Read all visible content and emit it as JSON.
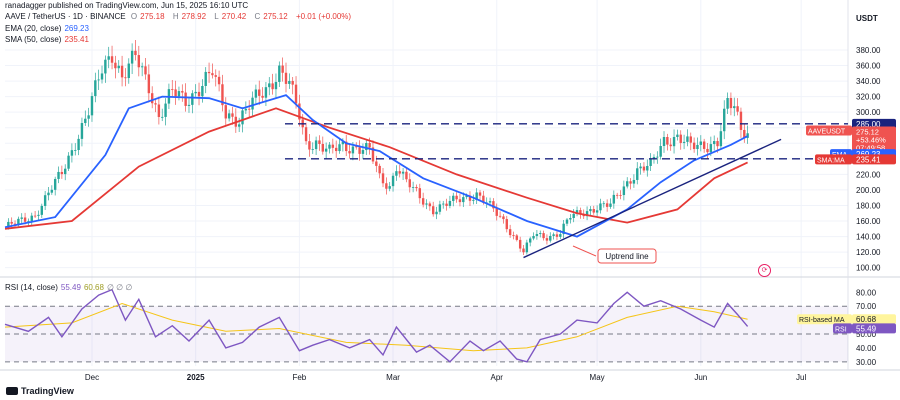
{
  "header": {
    "publisher": "ranadagger published on TradingView.com, Jun 15, 2025 16:10 UTC",
    "symbol": "AAVE / TetherUS · 1D · BINANCE",
    "ohlc": {
      "o_label": "O",
      "o": "275.18",
      "h_label": "H",
      "h": "278.92",
      "l_label": "L",
      "l": "270.42",
      "c_label": "C",
      "c": "275.12",
      "change": "+0.01 (+0.00%)"
    },
    "ema_legend": {
      "label": "EMA (20, close)",
      "value": "269.23"
    },
    "sma_legend": {
      "label": "SMA (50, close)",
      "value": "235.41"
    },
    "rsi_legend": {
      "label": "RSI (14, close)",
      "value": "55.49",
      "value2": "60.68",
      "extras": "∅ ∅ ∅"
    },
    "currency": "USDT",
    "brand": "TradingView"
  },
  "chart_data": {
    "type": "candlestick",
    "price_axis": {
      "ticks": [
        100,
        120,
        140,
        160,
        180,
        200,
        220,
        240,
        260,
        280,
        300,
        320,
        340,
        360,
        380
      ],
      "tick_labels": [
        "100.00",
        "120.00",
        "140.00",
        "160.00",
        "180.00",
        "200.00",
        "220.00",
        "240.00",
        "260.00",
        "280.00",
        "300.00",
        "320.00",
        "340.00",
        "360.00",
        "380.00"
      ],
      "range": [
        97,
        398
      ],
      "scale": "linear"
    },
    "time_axis": {
      "labels": [
        "Dec",
        "2025",
        "Feb",
        "Mar",
        "Apr",
        "May",
        "Jun",
        "Jul"
      ],
      "label_dates": [
        "2024-12-01",
        "2025-01-01",
        "2025-02-01",
        "2025-03-01",
        "2025-04-01",
        "2025-05-01",
        "2025-06-01",
        "2025-07-01"
      ],
      "range": [
        "2024-11-05",
        "2025-07-15"
      ]
    },
    "anchors": [
      [
        "2024-11-05",
        152
      ],
      [
        "2024-11-10",
        160
      ],
      [
        "2024-11-14",
        168
      ],
      [
        "2024-11-18",
        195
      ],
      [
        "2024-11-22",
        222
      ],
      [
        "2024-11-26",
        262
      ],
      [
        "2024-11-30",
        300
      ],
      [
        "2024-12-04",
        355
      ],
      [
        "2024-12-07",
        378
      ],
      [
        "2024-12-10",
        345
      ],
      [
        "2024-12-14",
        370
      ],
      [
        "2024-12-18",
        335
      ],
      [
        "2024-12-21",
        295
      ],
      [
        "2024-12-25",
        325
      ],
      [
        "2024-12-29",
        315
      ],
      [
        "2025-01-02",
        332
      ],
      [
        "2025-01-06",
        350
      ],
      [
        "2025-01-10",
        300
      ],
      [
        "2025-01-14",
        290
      ],
      [
        "2025-01-18",
        312
      ],
      [
        "2025-01-22",
        330
      ],
      [
        "2025-01-26",
        355
      ],
      [
        "2025-01-29",
        335
      ],
      [
        "2025-02-01",
        295
      ],
      [
        "2025-02-03",
        260
      ],
      [
        "2025-02-06",
        262
      ],
      [
        "2025-02-10",
        248
      ],
      [
        "2025-02-14",
        257
      ],
      [
        "2025-02-18",
        255
      ],
      [
        "2025-02-22",
        250
      ],
      [
        "2025-02-25",
        215
      ],
      [
        "2025-02-28",
        205
      ],
      [
        "2025-03-02",
        232
      ],
      [
        "2025-03-05",
        210
      ],
      [
        "2025-03-09",
        190
      ],
      [
        "2025-03-13",
        175
      ],
      [
        "2025-03-18",
        183
      ],
      [
        "2025-03-22",
        190
      ],
      [
        "2025-03-26",
        195
      ],
      [
        "2025-03-30",
        178
      ],
      [
        "2025-04-03",
        160
      ],
      [
        "2025-04-07",
        135
      ],
      [
        "2025-04-09",
        120
      ],
      [
        "2025-04-12",
        142
      ],
      [
        "2025-04-16",
        140
      ],
      [
        "2025-04-20",
        145
      ],
      [
        "2025-04-23",
        165
      ],
      [
        "2025-04-27",
        172
      ],
      [
        "2025-05-01",
        178
      ],
      [
        "2025-05-05",
        180
      ],
      [
        "2025-05-09",
        205
      ],
      [
        "2025-05-13",
        225
      ],
      [
        "2025-05-17",
        230
      ],
      [
        "2025-05-21",
        265
      ],
      [
        "2025-05-25",
        268
      ],
      [
        "2025-05-29",
        255
      ],
      [
        "2025-06-02",
        258
      ],
      [
        "2025-06-06",
        262
      ],
      [
        "2025-06-09",
        310
      ],
      [
        "2025-06-11",
        305
      ],
      [
        "2025-06-13",
        280
      ],
      [
        "2025-06-15",
        275
      ]
    ],
    "ema": {
      "name": "EMA",
      "period": 20,
      "color": "#2962ff",
      "points": [
        [
          "2024-11-05",
          152
        ],
        [
          "2024-11-20",
          165
        ],
        [
          "2024-12-05",
          245
        ],
        [
          "2024-12-12",
          305
        ],
        [
          "2024-12-22",
          320
        ],
        [
          "2025-01-05",
          318
        ],
        [
          "2025-01-15",
          305
        ],
        [
          "2025-01-28",
          322
        ],
        [
          "2025-02-05",
          290
        ],
        [
          "2025-02-15",
          260
        ],
        [
          "2025-02-25",
          250
        ],
        [
          "2025-03-10",
          215
        ],
        [
          "2025-03-25",
          190
        ],
        [
          "2025-04-10",
          160
        ],
        [
          "2025-04-25",
          140
        ],
        [
          "2025-05-10",
          175
        ],
        [
          "2025-05-20",
          210
        ],
        [
          "2025-05-30",
          238
        ],
        [
          "2025-06-10",
          258
        ],
        [
          "2025-06-15",
          269.23
        ]
      ]
    },
    "sma": {
      "name": "SMA",
      "period": 50,
      "color": "#e53935",
      "points": [
        [
          "2024-11-05",
          150
        ],
        [
          "2024-11-25",
          160
        ],
        [
          "2024-12-15",
          230
        ],
        [
          "2025-01-05",
          275
        ],
        [
          "2025-01-25",
          305
        ],
        [
          "2025-02-10",
          280
        ],
        [
          "2025-02-28",
          255
        ],
        [
          "2025-03-20",
          220
        ],
        [
          "2025-04-10",
          190
        ],
        [
          "2025-04-25",
          170
        ],
        [
          "2025-05-10",
          158
        ],
        [
          "2025-05-25",
          175
        ],
        [
          "2025-06-05",
          215
        ],
        [
          "2025-06-15",
          235.41
        ]
      ]
    },
    "horizontal_lines": [
      {
        "value": 285,
        "label": "285.00",
        "style": "dashed",
        "color": "#1a237e"
      },
      {
        "value": 240,
        "label": "240.00",
        "style": "dashed",
        "color": "#1a237e"
      }
    ],
    "trendline": {
      "name": "Uptrend line",
      "from": [
        "2025-04-09",
        113
      ],
      "to": [
        "2025-06-25",
        265
      ],
      "color": "#1a237e"
    },
    "price_badges": [
      {
        "label": "AAVEUSDT",
        "value": "275.12",
        "extra": [
          "+53.46%",
          "07:49:58"
        ],
        "color": "#ef5350"
      },
      {
        "label": "EMA",
        "value": "269.23",
        "color": "#2962ff"
      },
      {
        "label": "SMA:MA",
        "value": "235.41",
        "color": "#e53935"
      }
    ],
    "rsi": {
      "name": "RSI",
      "period": 14,
      "color": "#7e57c2",
      "axis_ticks": [
        30,
        40,
        50,
        60,
        70,
        80
      ],
      "axis_tick_labels": [
        "30.00",
        "40.00",
        "50.00",
        "60.00",
        "70.00",
        "80.00"
      ],
      "range": [
        27,
        86
      ],
      "band": [
        30,
        70
      ],
      "current": 55.49,
      "current_label": "55.49",
      "ma_label": "RSI-based MA",
      "ma_value": 60.68,
      "ma_value_label": "60.68",
      "points": [
        [
          "2024-11-05",
          57
        ],
        [
          "2024-11-12",
          52
        ],
        [
          "2024-11-18",
          62
        ],
        [
          "2024-11-22",
          48
        ],
        [
          "2024-11-28",
          68
        ],
        [
          "2024-12-03",
          78
        ],
        [
          "2024-12-07",
          82
        ],
        [
          "2024-12-11",
          60
        ],
        [
          "2024-12-15",
          75
        ],
        [
          "2024-12-20",
          48
        ],
        [
          "2024-12-25",
          56
        ],
        [
          "2024-12-30",
          45
        ],
        [
          "2025-01-05",
          60
        ],
        [
          "2025-01-10",
          40
        ],
        [
          "2025-01-15",
          44
        ],
        [
          "2025-01-20",
          55
        ],
        [
          "2025-01-26",
          62
        ],
        [
          "2025-02-01",
          38
        ],
        [
          "2025-02-05",
          42
        ],
        [
          "2025-02-10",
          46
        ],
        [
          "2025-02-16",
          40
        ],
        [
          "2025-02-22",
          46
        ],
        [
          "2025-02-26",
          35
        ],
        [
          "2025-03-02",
          55
        ],
        [
          "2025-03-08",
          37
        ],
        [
          "2025-03-12",
          42
        ],
        [
          "2025-03-18",
          30
        ],
        [
          "2025-03-24",
          45
        ],
        [
          "2025-03-28",
          38
        ],
        [
          "2025-04-02",
          45
        ],
        [
          "2025-04-07",
          32
        ],
        [
          "2025-04-10",
          30
        ],
        [
          "2025-04-14",
          46
        ],
        [
          "2025-04-20",
          50
        ],
        [
          "2025-04-25",
          60
        ],
        [
          "2025-05-01",
          58
        ],
        [
          "2025-05-06",
          72
        ],
        [
          "2025-05-10",
          80
        ],
        [
          "2025-05-15",
          70
        ],
        [
          "2025-05-20",
          74
        ],
        [
          "2025-05-26",
          68
        ],
        [
          "2025-06-01",
          60
        ],
        [
          "2025-06-05",
          55
        ],
        [
          "2025-06-09",
          72
        ],
        [
          "2025-06-12",
          64
        ],
        [
          "2025-06-15",
          55.49
        ]
      ],
      "ma_points": [
        [
          "2024-11-05",
          55
        ],
        [
          "2024-11-25",
          58
        ],
        [
          "2024-12-10",
          72
        ],
        [
          "2024-12-25",
          60
        ],
        [
          "2025-01-10",
          52
        ],
        [
          "2025-01-26",
          54
        ],
        [
          "2025-02-15",
          44
        ],
        [
          "2025-03-05",
          42
        ],
        [
          "2025-03-25",
          38
        ],
        [
          "2025-04-10",
          40
        ],
        [
          "2025-04-25",
          48
        ],
        [
          "2025-05-10",
          62
        ],
        [
          "2025-05-25",
          70
        ],
        [
          "2025-06-05",
          66
        ],
        [
          "2025-06-15",
          60.68
        ]
      ]
    },
    "colors": {
      "up": "#26a69a",
      "down": "#ef5350",
      "grid": "#f0f3fa",
      "axis_text": "#131722"
    }
  }
}
